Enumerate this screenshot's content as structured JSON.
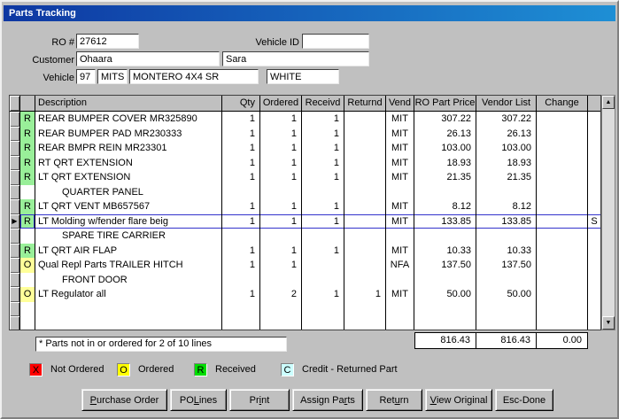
{
  "window": {
    "title": "Parts Tracking"
  },
  "fields": {
    "ro_label": "RO #",
    "ro_value": "27612",
    "vehicle_id_label": "Vehicle ID",
    "vehicle_id_value": "",
    "customer_label": "Customer",
    "customer_last": "Ohaara",
    "customer_first": "Sara",
    "vehicle_label": "Vehicle",
    "vehicle_year": "97",
    "vehicle_make": "MITS",
    "vehicle_model": "MONTERO 4X4 SR",
    "vehicle_color": "WHITE"
  },
  "table": {
    "headers": {
      "description": "Description",
      "qty": "Qty",
      "ordered": "Ordered",
      "receivd": "Receivd",
      "returnd": "Returnd",
      "vend": "Vend",
      "price": "RO Part Price",
      "list": "Vendor List",
      "change": "Change"
    },
    "rows": [
      {
        "type": "part",
        "status": "R",
        "desc": "REAR BUMPER COVER MR325890",
        "qty": "1",
        "ordered": "1",
        "receivd": "1",
        "returnd": "",
        "vend": "MIT",
        "price": "307.22",
        "list": "307.22",
        "change": "",
        "flag": "",
        "selected": false
      },
      {
        "type": "part",
        "status": "R",
        "desc": "REAR BUMPER PAD MR230333",
        "qty": "1",
        "ordered": "1",
        "receivd": "1",
        "returnd": "",
        "vend": "MIT",
        "price": "26.13",
        "list": "26.13",
        "change": "",
        "flag": "",
        "selected": false
      },
      {
        "type": "part",
        "status": "R",
        "desc": "REAR BMPR REIN MR23301",
        "qty": "1",
        "ordered": "1",
        "receivd": "1",
        "returnd": "",
        "vend": "MIT",
        "price": "103.00",
        "list": "103.00",
        "change": "",
        "flag": "",
        "selected": false
      },
      {
        "type": "part",
        "status": "R",
        "desc": "RT QRT EXTENSION",
        "qty": "1",
        "ordered": "1",
        "receivd": "1",
        "returnd": "",
        "vend": "MIT",
        "price": "18.93",
        "list": "18.93",
        "change": "",
        "flag": "",
        "selected": false
      },
      {
        "type": "part",
        "status": "R",
        "desc": "LT QRT EXTENSION",
        "qty": "1",
        "ordered": "1",
        "receivd": "1",
        "returnd": "",
        "vend": "MIT",
        "price": "21.35",
        "list": "21.35",
        "change": "",
        "flag": "",
        "selected": false
      },
      {
        "type": "group",
        "status": "",
        "desc": "QUARTER PANEL",
        "qty": "",
        "ordered": "",
        "receivd": "",
        "returnd": "",
        "vend": "",
        "price": "",
        "list": "",
        "change": "",
        "flag": "",
        "selected": false
      },
      {
        "type": "part",
        "status": "R",
        "desc": "LT QRT VENT MB657567",
        "qty": "1",
        "ordered": "1",
        "receivd": "1",
        "returnd": "",
        "vend": "MIT",
        "price": "8.12",
        "list": "8.12",
        "change": "",
        "flag": "",
        "selected": false
      },
      {
        "type": "part",
        "status": "R",
        "desc": "LT Molding w/fender flare beig",
        "qty": "1",
        "ordered": "1",
        "receivd": "1",
        "returnd": "",
        "vend": "MIT",
        "price": "133.85",
        "list": "133.85",
        "change": "",
        "flag": "S",
        "selected": true
      },
      {
        "type": "group",
        "status": "",
        "desc": "SPARE TIRE CARRIER",
        "qty": "",
        "ordered": "",
        "receivd": "",
        "returnd": "",
        "vend": "",
        "price": "",
        "list": "",
        "change": "",
        "flag": "",
        "selected": false
      },
      {
        "type": "part",
        "status": "R",
        "desc": "LT QRT AIR FLAP",
        "qty": "1",
        "ordered": "1",
        "receivd": "1",
        "returnd": "",
        "vend": "MIT",
        "price": "10.33",
        "list": "10.33",
        "change": "",
        "flag": "",
        "selected": false
      },
      {
        "type": "part",
        "status": "O",
        "desc": "Qual Repl Parts TRAILER HITCH",
        "qty": "1",
        "ordered": "1",
        "receivd": "",
        "returnd": "",
        "vend": "NFA",
        "price": "137.50",
        "list": "137.50",
        "change": "",
        "flag": "",
        "selected": false
      },
      {
        "type": "group",
        "status": "",
        "desc": "FRONT DOOR",
        "qty": "",
        "ordered": "",
        "receivd": "",
        "returnd": "",
        "vend": "",
        "price": "",
        "list": "",
        "change": "",
        "flag": "",
        "selected": false
      },
      {
        "type": "part",
        "status": "O",
        "desc": "LT Regulator all",
        "qty": "1",
        "ordered": "2",
        "receivd": "1",
        "returnd": "1",
        "vend": "MIT",
        "price": "50.00",
        "list": "50.00",
        "change": "",
        "flag": "",
        "selected": false
      },
      {
        "type": "empty",
        "status": "",
        "desc": "",
        "qty": "",
        "ordered": "",
        "receivd": "",
        "returnd": "",
        "vend": "",
        "price": "",
        "list": "",
        "change": "",
        "flag": "",
        "selected": false
      },
      {
        "type": "empty",
        "status": "",
        "desc": "",
        "qty": "",
        "ordered": "",
        "receivd": "",
        "returnd": "",
        "vend": "",
        "price": "",
        "list": "",
        "change": "",
        "flag": "",
        "selected": false
      }
    ],
    "totals": {
      "price": "816.43",
      "list": "816.43",
      "change": "0.00"
    },
    "note": "* Parts not in or ordered for 2 of 10 lines"
  },
  "legend": {
    "items": [
      {
        "code": "X",
        "label": "Not Ordered",
        "color": "#ff0000"
      },
      {
        "code": "O",
        "label": "Ordered",
        "color": "#ffff00"
      },
      {
        "code": "R",
        "label": "Received",
        "color": "#00dd00"
      },
      {
        "code": "C",
        "label": "Credit - Returned Part",
        "color": "#ccffff"
      }
    ]
  },
  "buttons": [
    {
      "label": "Purchase Order",
      "underline": 0
    },
    {
      "label": "PO Lines",
      "underline": 3
    },
    {
      "label": "Print",
      "underline": 2
    },
    {
      "label": "Assign Parts",
      "underline": 9
    },
    {
      "label": "Return",
      "underline": 3
    },
    {
      "label": "View Original",
      "underline": 0
    },
    {
      "label": "Esc-Done",
      "underline": -1
    }
  ],
  "colors": {
    "status_received_row": "#99ef99",
    "status_ordered_row": "#ffff99",
    "selection_border": "#3333cc",
    "titlebar_left": "#0e37a2",
    "titlebar_right": "#1e8fd5"
  }
}
